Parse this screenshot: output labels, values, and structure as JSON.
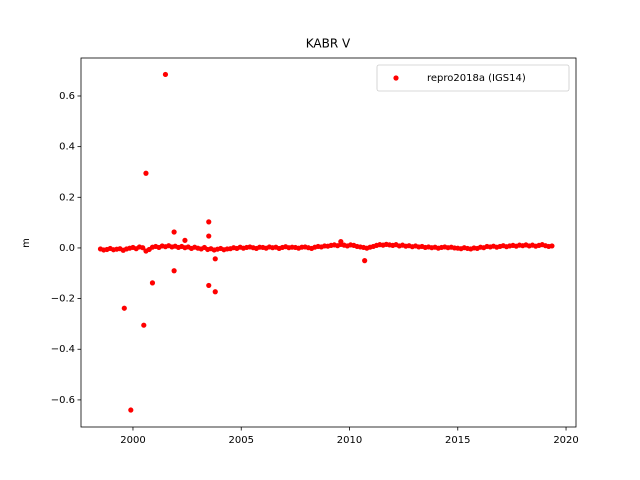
{
  "chart_data": {
    "type": "scatter",
    "title": "KABR V",
    "ylabel": "m",
    "xlim": [
      1997.6,
      2020.46
    ],
    "xticks": [
      2000,
      2005,
      2010,
      2015,
      2020
    ],
    "ylim": [
      -0.707,
      0.75
    ],
    "yticks": [
      {
        "value": -0.6,
        "label": "−0.6"
      },
      {
        "value": -0.4,
        "label": "−0.4"
      },
      {
        "value": -0.2,
        "label": "−0.2"
      },
      {
        "value": 0,
        "label": "0.0"
      },
      0.2,
      0.4,
      0.6
    ],
    "legend": "upper right",
    "series": [
      {
        "name": "repro2018a (IGS14)",
        "color": "#ff0000",
        "x": [
          1998.5,
          1998.65,
          1998.8,
          1998.95,
          1999.1,
          1999.25,
          1999.4,
          1999.55,
          1999.7,
          1999.85,
          2000,
          2000.15,
          2000.3,
          2000.45,
          2000.6,
          2000.75,
          2000.9,
          2001.05,
          2001.2,
          2001.35,
          2001.5,
          2001.65,
          2001.8,
          2001.95,
          2002.1,
          2002.25,
          2002.4,
          2002.55,
          2002.7,
          2002.85,
          2003,
          2003.15,
          2003.3,
          2003.45,
          2003.6,
          2003.75,
          2003.9,
          2004.05,
          2004.2,
          2004.35,
          2004.5,
          2004.65,
          2004.8,
          2004.95,
          2005.1,
          2005.25,
          2005.4,
          2005.55,
          2005.7,
          2005.85,
          2006,
          2006.15,
          2006.3,
          2006.45,
          2006.6,
          2006.75,
          2006.9,
          2007.05,
          2007.2,
          2007.35,
          2007.5,
          2007.65,
          2007.8,
          2007.95,
          2008.1,
          2008.25,
          2008.4,
          2008.55,
          2008.7,
          2008.85,
          2009,
          2009.15,
          2009.3,
          2009.45,
          2009.6,
          2009.75,
          2009.9,
          2010.05,
          2010.2,
          2010.35,
          2010.5,
          2010.65,
          2010.8,
          2010.95,
          2011.1,
          2011.25,
          2011.4,
          2011.55,
          2011.7,
          2011.85,
          2012,
          2012.15,
          2012.3,
          2012.45,
          2012.6,
          2012.75,
          2012.9,
          2013.05,
          2013.2,
          2013.35,
          2013.5,
          2013.65,
          2013.8,
          2013.95,
          2014.1,
          2014.25,
          2014.4,
          2014.55,
          2014.7,
          2014.85,
          2015,
          2015.15,
          2015.3,
          2015.45,
          2015.6,
          2015.75,
          2015.9,
          2016.05,
          2016.2,
          2016.35,
          2016.5,
          2016.65,
          2016.8,
          2016.95,
          2017.1,
          2017.25,
          2017.4,
          2017.55,
          2017.7,
          2017.85,
          2018,
          2018.15,
          2018.3,
          2018.45,
          2018.6,
          2018.75,
          2018.9,
          2019.05,
          2019.2,
          2019.35,
          2001.5,
          2000.6,
          2001.9,
          2003.5,
          2003.5,
          2002.4,
          2001.9,
          2000.9,
          1999.6,
          2000.5,
          1999.9,
          2003.5,
          2003.8,
          2003.8,
          2010.7,
          2009.6
        ],
        "y": [
          -0.004,
          -0.008,
          -0.006,
          -0.002,
          -0.007,
          -0.005,
          -0.003,
          -0.009,
          -0.004,
          -0.001,
          0.002,
          -0.003,
          0.004,
          0.001,
          -0.012,
          -0.006,
          0.003,
          0.006,
          0.002,
          0.008,
          0.005,
          0.009,
          0.004,
          0.007,
          0.002,
          0.006,
          0.001,
          0.004,
          -0.002,
          0.003,
          -0.001,
          -0.004,
          0.002,
          -0.006,
          -0.003,
          -0.008,
          -0.005,
          -0.002,
          -0.007,
          -0.004,
          -0.003,
          0.001,
          -0.002,
          0.003,
          -0.001,
          0.002,
          0.004,
          0.001,
          -0.002,
          0.003,
          0.002,
          -0.001,
          0.004,
          0.001,
          0.003,
          -0.002,
          0.002,
          0.005,
          0.001,
          0.003,
          0.002,
          -0.001,
          0.003,
          0.004,
          0.001,
          -0.002,
          0.003,
          0.006,
          0.004,
          0.008,
          0.007,
          0.01,
          0.012,
          0.009,
          0.014,
          0.011,
          0.008,
          0.012,
          0.01,
          0.006,
          0.004,
          0.002,
          -0.001,
          0.003,
          0.006,
          0.01,
          0.013,
          0.011,
          0.014,
          0.012,
          0.01,
          0.013,
          0.008,
          0.011,
          0.007,
          0.009,
          0.005,
          0.008,
          0.004,
          0.006,
          0.002,
          0.004,
          0.001,
          0.003,
          -0.001,
          0.002,
          0.004,
          0.001,
          0.003,
          0,
          -0.001,
          -0.003,
          0.001,
          -0.002,
          -0.004,
          0,
          -0.002,
          0.003,
          0.001,
          0.006,
          0.004,
          0.007,
          0.003,
          0.006,
          0.009,
          0.005,
          0.008,
          0.01,
          0.007,
          0.011,
          0.009,
          0.012,
          0.008,
          0.011,
          0.007,
          0.01,
          0.013,
          0.009,
          0.006,
          0.008,
          0.685,
          0.295,
          0.063,
          0.103,
          0.047,
          0.03,
          -0.09,
          -0.138,
          -0.238,
          -0.305,
          -0.64,
          -0.148,
          -0.173,
          -0.043,
          -0.05,
          0.025
        ]
      }
    ]
  }
}
